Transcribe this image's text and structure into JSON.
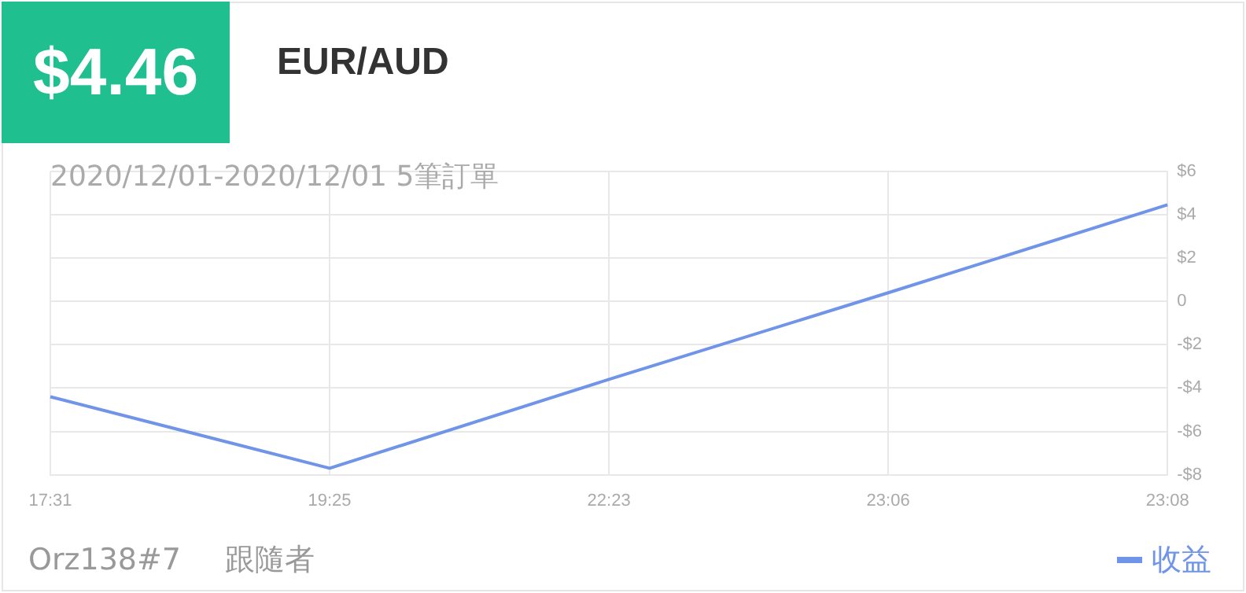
{
  "chart_data": {
    "type": "line",
    "title": "$4.46",
    "subtitle": "EUR/AUD",
    "annotations": [
      "2020/12/01-2020/12/01 5筆訂單",
      "Orz138#7",
      "跟隨者"
    ],
    "categories": [
      "17:31",
      "19:25",
      "22:23",
      "23:06",
      "23:08"
    ],
    "series": [
      {
        "name": "收益",
        "color": "#7094e8",
        "values": [
          -4.4,
          -7.7,
          -3.6,
          0.4,
          4.46
        ]
      }
    ],
    "ylim": [
      -8,
      6
    ],
    "yticks": [
      {
        "value": -8,
        "label": "-$8"
      },
      {
        "value": -6,
        "label": "-$6"
      },
      {
        "value": -4,
        "label": "-$4"
      },
      {
        "value": -2,
        "label": "-$2"
      },
      0,
      {
        "value": 2,
        "label": "$2"
      },
      {
        "value": 4,
        "label": "$4"
      },
      {
        "value": 6,
        "label": "$6"
      }
    ],
    "grid": true,
    "legend": "bottom right",
    "marker": "none",
    "line_style": "solid"
  }
}
